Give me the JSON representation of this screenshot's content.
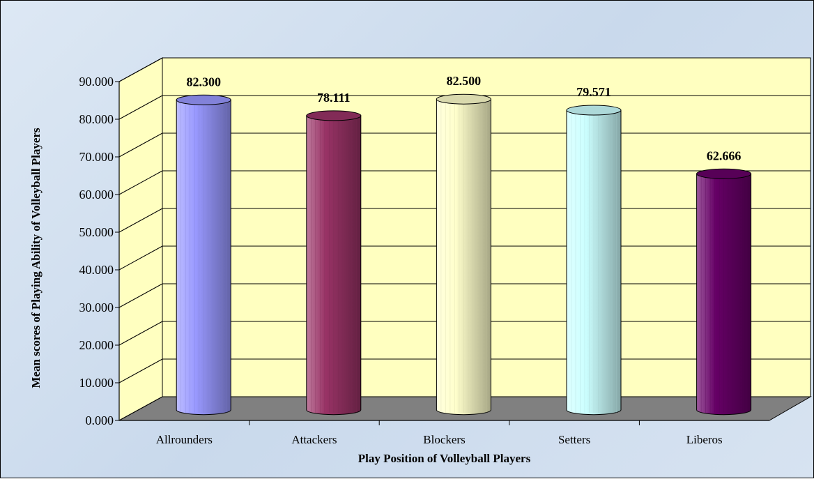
{
  "chart_data": {
    "type": "bar",
    "categories": [
      "Allrounders",
      "Attackers",
      "Blockers",
      "Setters",
      "Liberos"
    ],
    "values": [
      82.3,
      78.111,
      82.5,
      79.571,
      62.666
    ],
    "value_labels": [
      "82.300",
      "78.111",
      "82.500",
      "79.571",
      "62.666"
    ],
    "ylim": [
      0,
      90
    ],
    "yticks": [
      "0.000",
      "10.000",
      "20.000",
      "30.000",
      "40.000",
      "50.000",
      "60.000",
      "70.000",
      "80.000",
      "90.000"
    ],
    "title": "",
    "xlabel": "Play Position of Volleyball Players",
    "ylabel": "Mean scores of Playing Ability of Volleyball Players",
    "grid": true,
    "style": "3d-cylinder",
    "colors": [
      "#9999ff",
      "#993366",
      "#ffffcc",
      "#ccffff",
      "#660066"
    ],
    "wall_color": "#ffffc0",
    "floor_color": "#808080"
  }
}
